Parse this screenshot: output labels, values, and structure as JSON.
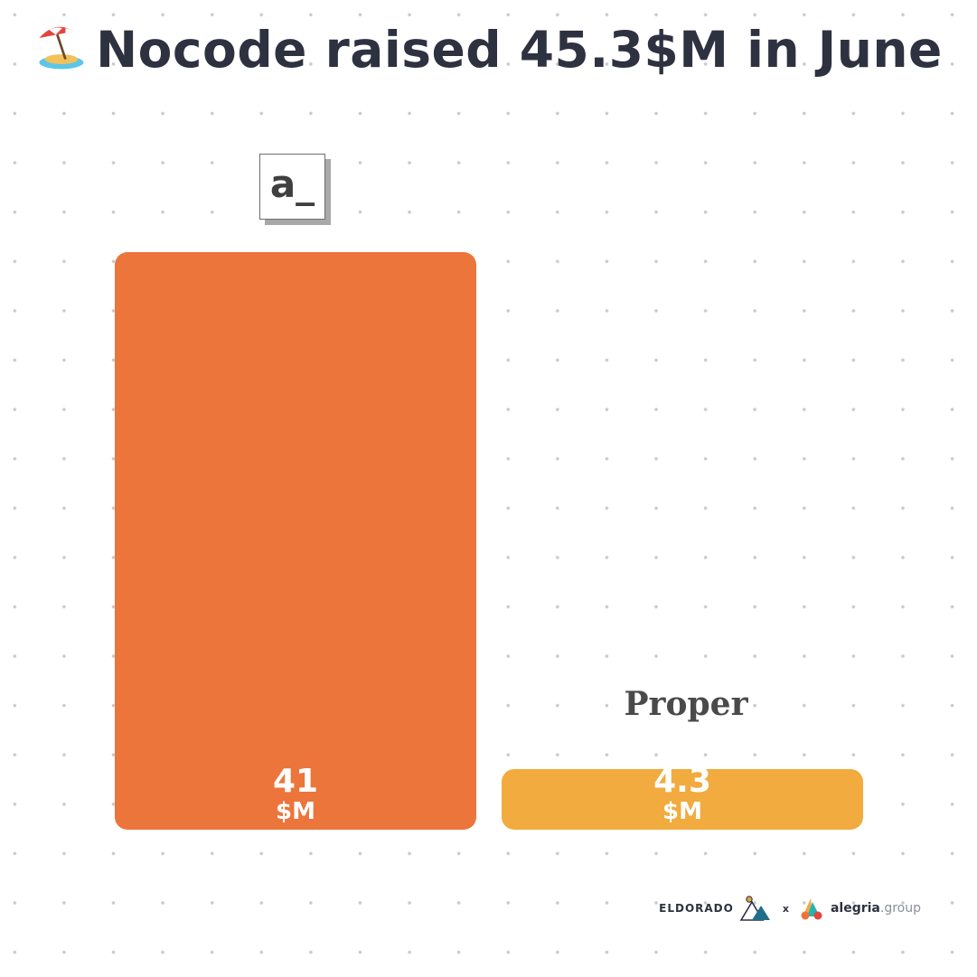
{
  "header": {
    "emoji": "beach-umbrella-icon",
    "title": "Nocode raised 45.3$M in June"
  },
  "chart_data": {
    "type": "bar",
    "title": "Nocode raised 45.3$M in June",
    "categories": [
      "a_",
      "Proper"
    ],
    "values": [
      41,
      4.3
    ],
    "value_labels": [
      "41",
      "4.3"
    ],
    "unit": "$M",
    "colors": [
      "#ec753b",
      "#f1ab3e"
    ],
    "ylim": [
      0,
      41
    ],
    "grid": false,
    "legend": "none"
  },
  "footer": {
    "eldorado": "ELDORADO",
    "separator": "x",
    "alegria_name": "alegria",
    "alegria_tld": ".group"
  }
}
